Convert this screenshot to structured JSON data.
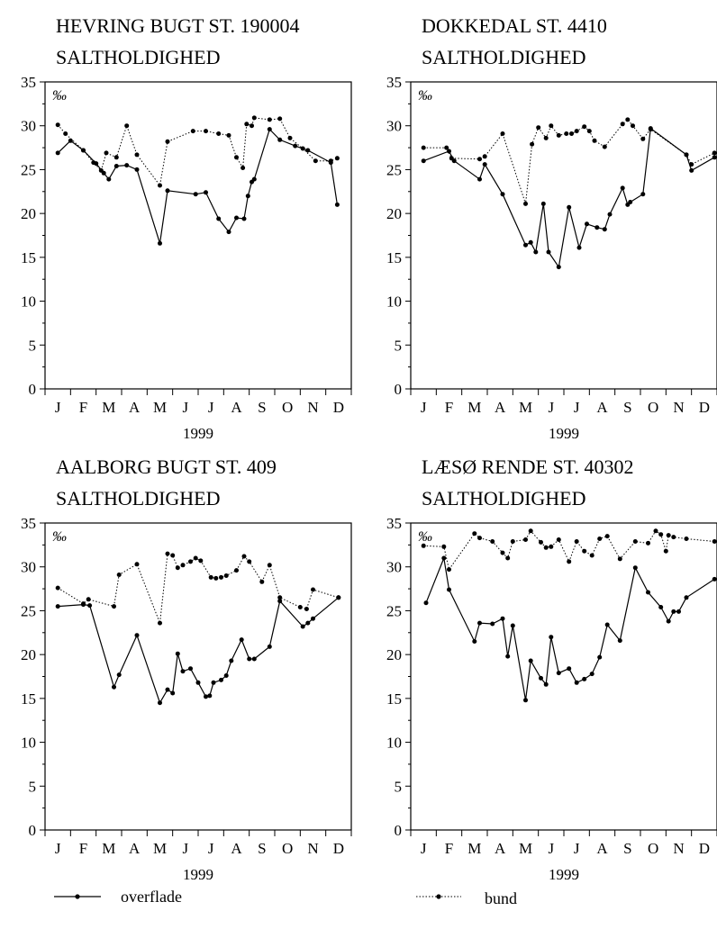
{
  "months": [
    "J",
    "F",
    "M",
    "A",
    "M",
    "J",
    "J",
    "A",
    "S",
    "O",
    "N",
    "D"
  ],
  "colors": {
    "line": "#000000"
  },
  "legend": {
    "surface": "overflade",
    "bottom": "bund"
  },
  "chart_data": [
    {
      "type": "line",
      "title": "HEVRING BUGT  ST. 190004",
      "subtitle": "SALTHOLDIGHED",
      "unit": "‰",
      "xlabel": "1999",
      "ylim": [
        0,
        35
      ],
      "yticks": [
        "0",
        "5",
        "10",
        "15",
        "20",
        "25",
        "30",
        "35"
      ],
      "series": [
        {
          "name": "overflade",
          "style": "solid",
          "x": [
            0.5,
            1.0,
            1.5,
            2.0,
            2.3,
            2.5,
            2.8,
            3.2,
            3.6,
            4.5,
            4.8,
            5.9,
            6.3,
            6.8,
            7.2,
            7.5,
            7.8,
            7.95,
            8.1,
            8.2,
            8.8,
            9.2,
            9.8,
            10.3,
            11.2,
            11.45
          ],
          "y": [
            26.9,
            28.3,
            27.2,
            25.7,
            24.6,
            23.9,
            25.4,
            25.5,
            25.0,
            16.6,
            22.6,
            22.2,
            22.4,
            19.4,
            17.9,
            19.5,
            19.4,
            22.0,
            23.6,
            23.9,
            29.6,
            28.4,
            27.7,
            27.2,
            25.8,
            21.0
          ]
        },
        {
          "name": "bund",
          "style": "dotted",
          "x": [
            0.5,
            0.8,
            1.5,
            1.9,
            2.2,
            2.4,
            2.8,
            3.2,
            3.6,
            4.5,
            4.8,
            5.8,
            6.3,
            6.8,
            7.2,
            7.5,
            7.75,
            7.9,
            8.1,
            8.2,
            8.8,
            9.2,
            9.6,
            10.1,
            10.6,
            11.2,
            11.45
          ],
          "y": [
            30.1,
            29.1,
            27.2,
            25.8,
            24.9,
            26.9,
            26.4,
            30.0,
            26.7,
            23.2,
            28.2,
            29.4,
            29.4,
            29.1,
            28.9,
            26.4,
            25.2,
            30.2,
            30.0,
            30.9,
            30.7,
            30.8,
            28.6,
            27.4,
            26.0,
            26.0,
            26.3
          ]
        }
      ]
    },
    {
      "type": "line",
      "title": "DOKKEDAL  ST. 4410",
      "subtitle": "SALTHOLDIGHED",
      "unit": "‰",
      "xlabel": "1999",
      "ylim": [
        0,
        35
      ],
      "yticks": [
        "0",
        "5",
        "10",
        "15",
        "20",
        "25",
        "30",
        "35"
      ],
      "series": [
        {
          "name": "overflade",
          "style": "solid",
          "x": [
            0.5,
            1.5,
            1.7,
            2.7,
            2.9,
            3.6,
            4.5,
            4.7,
            4.9,
            5.2,
            5.4,
            5.8,
            6.2,
            6.6,
            6.9,
            7.3,
            7.6,
            7.8,
            8.3,
            8.5,
            8.6,
            9.1,
            9.4,
            10.8,
            11.0,
            11.9
          ],
          "y": [
            26.0,
            27.1,
            26.0,
            23.9,
            25.6,
            22.2,
            16.4,
            16.7,
            15.6,
            21.1,
            15.6,
            13.9,
            20.7,
            16.1,
            18.8,
            18.4,
            18.2,
            19.9,
            22.9,
            21.0,
            21.3,
            22.2,
            29.7,
            26.7,
            24.9,
            26.4
          ]
        },
        {
          "name": "bund",
          "style": "dotted",
          "x": [
            0.5,
            1.4,
            1.6,
            2.7,
            2.9,
            3.6,
            4.5,
            4.75,
            5.0,
            5.3,
            5.5,
            5.8,
            6.1,
            6.3,
            6.5,
            6.8,
            7.0,
            7.2,
            7.6,
            8.3,
            8.5,
            8.7,
            9.1,
            9.4,
            10.8,
            11.0,
            11.9
          ],
          "y": [
            27.5,
            27.5,
            26.3,
            26.2,
            26.5,
            29.1,
            21.1,
            27.9,
            29.8,
            28.6,
            30.0,
            28.9,
            29.1,
            29.1,
            29.4,
            29.9,
            29.4,
            28.3,
            27.6,
            30.2,
            30.7,
            30.0,
            28.5,
            29.6,
            26.7,
            25.6,
            26.9
          ]
        }
      ]
    },
    {
      "type": "line",
      "title": "AALBORG BUGT  ST. 409",
      "subtitle": "SALTHOLDIGHED",
      "unit": "‰",
      "xlabel": "1999",
      "ylim": [
        0,
        35
      ],
      "yticks": [
        "0",
        "5",
        "10",
        "15",
        "20",
        "25",
        "30",
        "35"
      ],
      "series": [
        {
          "name": "overflade",
          "style": "solid",
          "x": [
            0.5,
            1.5,
            1.75,
            2.7,
            2.9,
            3.6,
            4.5,
            4.8,
            5.0,
            5.2,
            5.4,
            5.7,
            6.0,
            6.3,
            6.45,
            6.6,
            6.9,
            7.1,
            7.3,
            7.7,
            8.0,
            8.2,
            8.8,
            9.2,
            10.1,
            10.3,
            10.5,
            11.5
          ],
          "y": [
            25.5,
            25.7,
            25.6,
            16.3,
            17.7,
            22.2,
            14.5,
            16.0,
            15.6,
            20.1,
            18.1,
            18.4,
            16.8,
            15.2,
            15.3,
            16.8,
            17.1,
            17.6,
            19.3,
            21.7,
            19.5,
            19.5,
            20.9,
            26.1,
            23.2,
            23.6,
            24.1,
            26.5
          ]
        },
        {
          "name": "bund",
          "style": "dotted",
          "x": [
            0.5,
            1.5,
            1.7,
            2.7,
            2.9,
            3.6,
            4.5,
            4.8,
            5.0,
            5.2,
            5.4,
            5.7,
            5.9,
            6.1,
            6.5,
            6.7,
            6.9,
            7.1,
            7.5,
            7.8,
            8.0,
            8.5,
            8.8,
            9.2,
            10.0,
            10.25,
            10.5,
            11.5
          ],
          "y": [
            27.6,
            25.8,
            26.3,
            25.5,
            29.1,
            30.3,
            23.6,
            31.5,
            31.3,
            29.9,
            30.2,
            30.6,
            31.0,
            30.7,
            28.8,
            28.7,
            28.8,
            29.0,
            29.6,
            31.2,
            30.6,
            28.3,
            30.2,
            26.5,
            25.4,
            25.2,
            27.4,
            26.5
          ]
        }
      ]
    },
    {
      "type": "line",
      "title": "LÆSØ RENDE  ST. 40302",
      "subtitle": "SALTHOLDIGHED",
      "unit": "‰",
      "xlabel": "1999",
      "ylim": [
        0,
        35
      ],
      "yticks": [
        "0",
        "5",
        "10",
        "15",
        "20",
        "25",
        "30",
        "35"
      ],
      "series": [
        {
          "name": "overflade",
          "style": "solid",
          "x": [
            0.6,
            1.3,
            1.5,
            2.5,
            2.7,
            3.2,
            3.6,
            3.8,
            4.0,
            4.5,
            4.7,
            5.1,
            5.3,
            5.5,
            5.8,
            6.2,
            6.5,
            6.8,
            7.1,
            7.4,
            7.7,
            8.2,
            8.8,
            9.3,
            9.8,
            10.1,
            10.3,
            10.5,
            10.8,
            11.9
          ],
          "y": [
            25.9,
            31.0,
            27.4,
            21.5,
            23.6,
            23.5,
            24.1,
            19.8,
            23.3,
            14.8,
            19.3,
            17.3,
            16.6,
            22.0,
            17.9,
            18.4,
            16.8,
            17.2,
            17.8,
            19.7,
            23.4,
            21.6,
            29.9,
            27.1,
            25.4,
            23.8,
            24.9,
            24.9,
            26.5,
            28.6
          ]
        },
        {
          "name": "bund",
          "style": "dotted",
          "x": [
            0.5,
            1.3,
            1.5,
            2.5,
            2.7,
            3.2,
            3.6,
            3.8,
            4.0,
            4.5,
            4.7,
            5.1,
            5.3,
            5.5,
            5.8,
            6.2,
            6.5,
            6.8,
            7.1,
            7.4,
            7.7,
            8.2,
            8.8,
            9.3,
            9.6,
            9.8,
            10.0,
            10.1,
            10.3,
            10.8,
            11.9
          ],
          "y": [
            32.4,
            32.3,
            29.7,
            33.8,
            33.3,
            32.9,
            31.6,
            31.0,
            32.9,
            33.1,
            34.1,
            32.8,
            32.2,
            32.3,
            33.1,
            30.6,
            32.9,
            31.8,
            31.3,
            33.2,
            33.5,
            30.9,
            32.9,
            32.7,
            34.1,
            33.7,
            31.8,
            33.6,
            33.4,
            33.2,
            32.9
          ]
        }
      ]
    }
  ]
}
